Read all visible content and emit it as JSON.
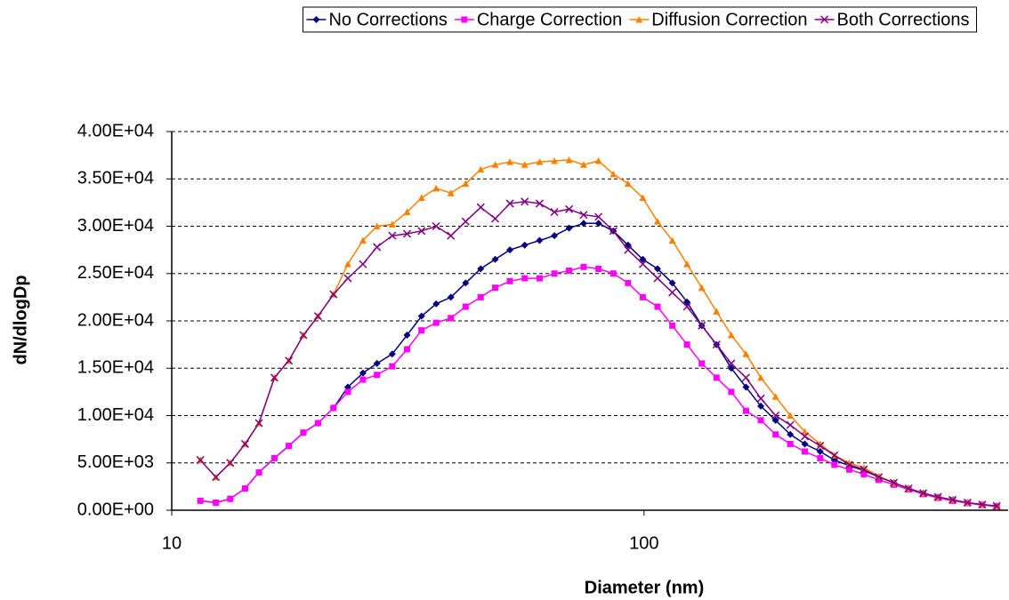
{
  "chart_data": {
    "type": "line",
    "x_label": "Diameter (nm)",
    "y_label": "dN/dlogDp",
    "x_scale": "log",
    "grid": true,
    "legend_position": "top",
    "xlim": [
      10,
      590
    ],
    "xticks": [
      10,
      100
    ],
    "ylim": [
      0,
      40000
    ],
    "yticks": [
      {
        "value": 0,
        "label": "0.00E+00"
      },
      {
        "value": 5000,
        "label": "5.00E+03"
      },
      {
        "value": 10000,
        "label": "1.00E+04"
      },
      {
        "value": 15000,
        "label": "1.50E+04"
      },
      {
        "value": 20000,
        "label": "2.00E+04"
      },
      {
        "value": 25000,
        "label": "2.50E+04"
      },
      {
        "value": 30000,
        "label": "3.00E+04"
      },
      {
        "value": 35000,
        "label": "3.50E+04"
      },
      {
        "value": 40000,
        "label": "4.00E+04"
      }
    ],
    "x": [
      11.5,
      12.4,
      13.3,
      14.3,
      15.3,
      16.5,
      17.7,
      19.0,
      20.4,
      22.0,
      23.6,
      25.4,
      27.2,
      29.3,
      31.5,
      33.8,
      36.3,
      39.0,
      41.9,
      45.1,
      48.4,
      52.0,
      55.9,
      60.1,
      64.6,
      69.4,
      74.5,
      80.1,
      86.1,
      92.5,
      99.4,
      106.8,
      114.8,
      123.3,
      132.5,
      142.4,
      153,
      164.4,
      176.7,
      189.9,
      204,
      219,
      236,
      253,
      272,
      292,
      314,
      338,
      363,
      390,
      419,
      450,
      484,
      520,
      558
    ],
    "series": [
      {
        "name": "No Corrections",
        "color": "#000080",
        "marker": "diamond",
        "values": [
          1000,
          800,
          1200,
          2300,
          4000,
          5500,
          6800,
          8200,
          9200,
          10800,
          13000,
          14500,
          15500,
          16500,
          18500,
          20500,
          21800,
          22500,
          24000,
          25500,
          26500,
          27500,
          28000,
          28500,
          29000,
          29800,
          30300,
          30300,
          29500,
          28000,
          26500,
          25500,
          24000,
          22000,
          19500,
          17500,
          15000,
          13000,
          11000,
          9500,
          8000,
          7000,
          6200,
          5300,
          4700,
          4200,
          3500,
          2900,
          2300,
          1800,
          1400,
          1100,
          800,
          600,
          450
        ]
      },
      {
        "name": "Charge Correction",
        "color": "#ff00ff",
        "marker": "square",
        "values": [
          1000,
          800,
          1200,
          2300,
          4000,
          5500,
          6800,
          8200,
          9200,
          10800,
          12500,
          13800,
          14300,
          15200,
          17000,
          19000,
          19800,
          20300,
          21500,
          22500,
          23500,
          24200,
          24500,
          24500,
          25000,
          25300,
          25700,
          25500,
          25000,
          24000,
          22500,
          21500,
          19500,
          17500,
          15500,
          14000,
          12500,
          10500,
          9500,
          8000,
          7000,
          6200,
          5500,
          4800,
          4300,
          3800,
          3200,
          2700,
          2200,
          1700,
          1300,
          1000,
          750,
          550,
          400
        ]
      },
      {
        "name": "Diffusion Correction",
        "color": "#ff8000",
        "marker": "triangle",
        "values": [
          5300,
          3500,
          5000,
          7000,
          9200,
          14000,
          15800,
          18500,
          20500,
          22800,
          26000,
          28500,
          30000,
          30200,
          31500,
          33000,
          34000,
          33500,
          34500,
          36000,
          36500,
          36800,
          36500,
          36800,
          36900,
          37000,
          36500,
          36900,
          35500,
          34500,
          33000,
          30500,
          28500,
          26000,
          23500,
          21000,
          18500,
          16500,
          14000,
          12000,
          10000,
          8300,
          7000,
          5800,
          5000,
          4500,
          3600,
          2900,
          2300,
          1800,
          1400,
          1100,
          800,
          600,
          450
        ]
      },
      {
        "name": "Both Corrections",
        "color": "#800080",
        "marker": "x",
        "values": [
          5300,
          3500,
          5000,
          7000,
          9200,
          14000,
          15800,
          18500,
          20500,
          22800,
          24500,
          26000,
          27800,
          29000,
          29200,
          29500,
          30000,
          29000,
          30500,
          32000,
          30800,
          32400,
          32600,
          32400,
          31500,
          31800,
          31200,
          31000,
          29500,
          27500,
          26000,
          24500,
          23000,
          21500,
          19500,
          17500,
          15500,
          14000,
          11800,
          10000,
          9000,
          7800,
          6800,
          5800,
          4800,
          4300,
          3500,
          2900,
          2300,
          1800,
          1400,
          1100,
          800,
          600,
          450
        ]
      }
    ]
  }
}
